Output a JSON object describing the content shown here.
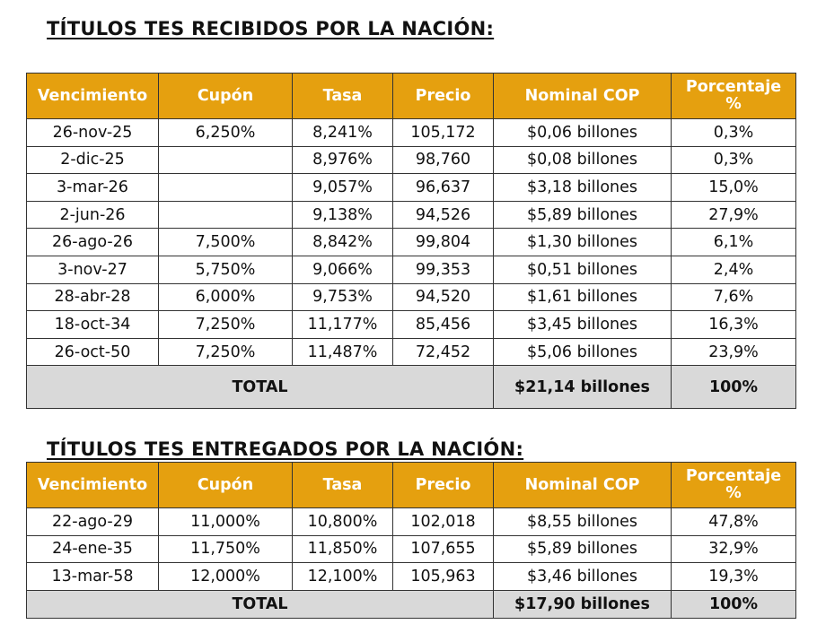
{
  "received": {
    "title": "TÍTULOS TES RECIBIDOS POR LA NACIÓN:",
    "headers": {
      "vencimiento": "Vencimiento",
      "cupon": "Cupón",
      "tasa": "Tasa",
      "precio": "Precio",
      "nominal": "Nominal COP",
      "porcentaje_line1": "Porcentaje",
      "porcentaje_line2": "%"
    },
    "rows": [
      {
        "vencimiento": "26-nov-25",
        "cupon": "6,250%",
        "tasa": "8,241%",
        "precio": "105,172",
        "nominal": "$0,06 billones",
        "porcentaje": "0,3%"
      },
      {
        "vencimiento": "2-dic-25",
        "cupon": "",
        "tasa": "8,976%",
        "precio": "98,760",
        "nominal": "$0,08 billones",
        "porcentaje": "0,3%"
      },
      {
        "vencimiento": "3-mar-26",
        "cupon": "",
        "tasa": "9,057%",
        "precio": "96,637",
        "nominal": "$3,18 billones",
        "porcentaje": "15,0%"
      },
      {
        "vencimiento": "2-jun-26",
        "cupon": "",
        "tasa": "9,138%",
        "precio": "94,526",
        "nominal": "$5,89 billones",
        "porcentaje": "27,9%"
      },
      {
        "vencimiento": "26-ago-26",
        "cupon": "7,500%",
        "tasa": "8,842%",
        "precio": "99,804",
        "nominal": "$1,30 billones",
        "porcentaje": "6,1%"
      },
      {
        "vencimiento": "3-nov-27",
        "cupon": "5,750%",
        "tasa": "9,066%",
        "precio": "99,353",
        "nominal": "$0,51 billones",
        "porcentaje": "2,4%"
      },
      {
        "vencimiento": "28-abr-28",
        "cupon": "6,000%",
        "tasa": "9,753%",
        "precio": "94,520",
        "nominal": "$1,61 billones",
        "porcentaje": "7,6%"
      },
      {
        "vencimiento": "18-oct-34",
        "cupon": "7,250%",
        "tasa": "11,177%",
        "precio": "85,456",
        "nominal": "$3,45 billones",
        "porcentaje": "16,3%"
      },
      {
        "vencimiento": "26-oct-50",
        "cupon": "7,250%",
        "tasa": "11,487%",
        "precio": "72,452",
        "nominal": "$5,06 billones",
        "porcentaje": "23,9%"
      }
    ],
    "total": {
      "label": "TOTAL",
      "nominal": "$21,14 billones",
      "porcentaje": "100%"
    }
  },
  "delivered": {
    "title": "TÍTULOS TES ENTREGADOS POR LA NACIÓN:",
    "headers": {
      "vencimiento": "Vencimiento",
      "cupon": "Cupón",
      "tasa": "Tasa",
      "precio": "Precio",
      "nominal": "Nominal COP",
      "porcentaje_line1": "Porcentaje",
      "porcentaje_line2": "%"
    },
    "rows": [
      {
        "vencimiento": "22-ago-29",
        "cupon": "11,000%",
        "tasa": "10,800%",
        "precio": "102,018",
        "nominal": "$8,55 billones",
        "porcentaje": "47,8%"
      },
      {
        "vencimiento": "24-ene-35",
        "cupon": "11,750%",
        "tasa": "11,850%",
        "precio": "107,655",
        "nominal": "$5,89 billones",
        "porcentaje": "32,9%"
      },
      {
        "vencimiento": "13-mar-58",
        "cupon": "12,000%",
        "tasa": "12,100%",
        "precio": "105,963",
        "nominal": "$3,46 billones",
        "porcentaje": "19,3%"
      }
    ],
    "total": {
      "label": "TOTAL",
      "nominal": "$17,90 billones",
      "porcentaje": "100%"
    }
  },
  "colors": {
    "header_bg": "#e5a00f",
    "header_text": "#ffffff",
    "total_bg": "#d9d9d9"
  }
}
